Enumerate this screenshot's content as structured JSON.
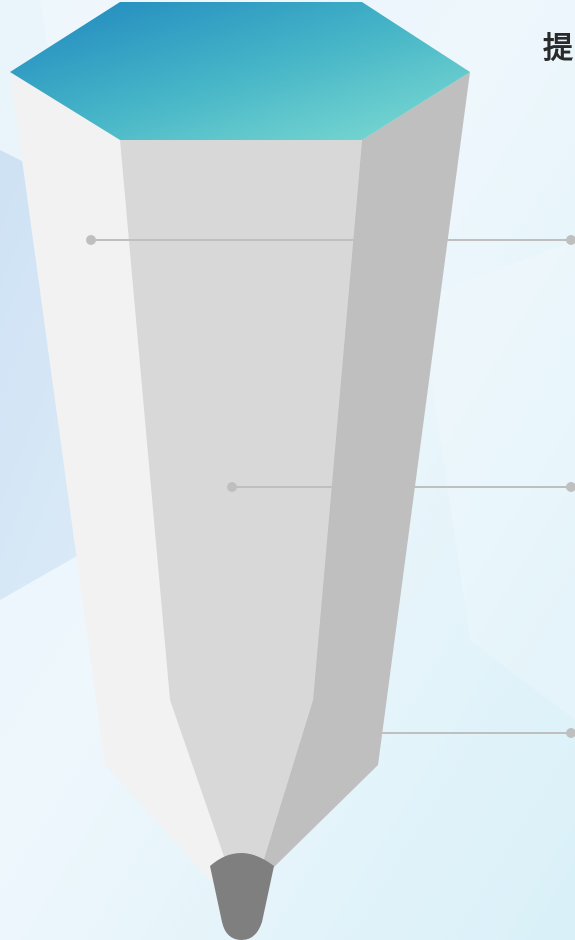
{
  "heading": {
    "text": "提"
  },
  "colors": {
    "background": "#e4f3fb",
    "cap_gradient_start": "#1f86bf",
    "cap_gradient_end": "#80ddd2",
    "pencil_left_face": "#f2f2f2",
    "pencil_center_face": "#d8d8d8",
    "pencil_right_face": "#bfbfbf",
    "pencil_tip": "#7f7f7f",
    "connector_line": "#bfbfbf",
    "heading_text": "#2a2a2a"
  },
  "icons": {
    "main_graphic": "pencil-infographic-icon"
  }
}
